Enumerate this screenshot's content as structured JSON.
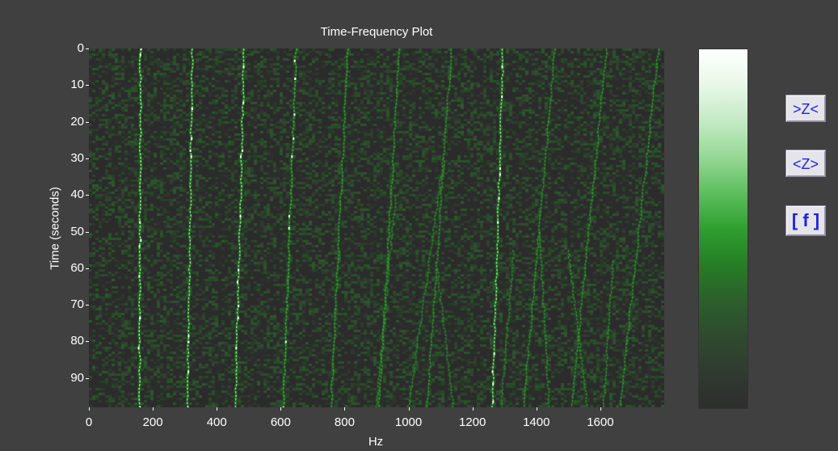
{
  "window": {
    "background": "#404040"
  },
  "toolbar": {
    "zoom_in_label": ">Z<",
    "zoom_out_label": "<Z>",
    "frequency_label": "[ f ]",
    "text_color": "#2222dd"
  },
  "chart_data": {
    "type": "heatmap",
    "title": "Time-Frequency Plot",
    "xlabel": "Hz",
    "ylabel": "Time (seconds)",
    "xlim": [
      0,
      1800
    ],
    "ylim": [
      98,
      0
    ],
    "x_ticks": [
      "0",
      "200",
      "400",
      "600",
      "800",
      "1000",
      "1200",
      "1400",
      "1600"
    ],
    "y_ticks": [
      "0",
      "10",
      "20",
      "30",
      "40",
      "50",
      "60",
      "70",
      "80",
      "90"
    ],
    "x_tick_values": [
      0,
      200,
      400,
      600,
      800,
      1000,
      1200,
      1400,
      1600
    ],
    "y_tick_values": [
      0,
      10,
      20,
      30,
      40,
      50,
      60,
      70,
      80,
      90
    ],
    "colormap": {
      "low": "#2b2b2b",
      "mid": "#2aa02a",
      "high": "#ffffff"
    },
    "series": [
      {
        "start_time": 0,
        "freq_at_start": 162,
        "freq_at_end": 158,
        "intensity": 0.95
      },
      {
        "start_time": 0,
        "freq_at_start": 324,
        "freq_at_end": 308,
        "intensity": 0.85
      },
      {
        "start_time": 0,
        "freq_at_start": 486,
        "freq_at_end": 458,
        "intensity": 0.85
      },
      {
        "start_time": 0,
        "freq_at_start": 648,
        "freq_at_end": 608,
        "intensity": 0.75
      },
      {
        "start_time": 0,
        "freq_at_start": 810,
        "freq_at_end": 758,
        "intensity": 0.65
      },
      {
        "start_time": 0,
        "freq_at_start": 972,
        "freq_at_end": 908,
        "intensity": 0.6
      },
      {
        "start_time": 0,
        "freq_at_start": 1134,
        "freq_at_end": 1058,
        "intensity": 0.55
      },
      {
        "start_time": 0,
        "freq_at_start": 1296,
        "freq_at_end": 1262,
        "intensity": 0.85
      },
      {
        "start_time": 0,
        "freq_at_start": 1458,
        "freq_at_end": 1360,
        "intensity": 0.55
      },
      {
        "start_time": 0,
        "freq_at_start": 1620,
        "freq_at_end": 1510,
        "intensity": 0.55
      },
      {
        "start_time": 0,
        "freq_at_start": 1782,
        "freq_at_end": 1662,
        "intensity": 0.55
      },
      {
        "start_time": 30,
        "freq_at_start": 1110,
        "freq_at_end": 1000,
        "intensity": 0.45
      },
      {
        "start_time": 40,
        "freq_at_start": 960,
        "freq_at_end": 900,
        "intensity": 0.45
      },
      {
        "start_time": 50,
        "freq_at_start": 1410,
        "freq_at_end": 1440,
        "intensity": 0.5
      },
      {
        "start_time": 55,
        "freq_at_start": 1330,
        "freq_at_end": 1290,
        "intensity": 0.45
      },
      {
        "start_time": 55,
        "freq_at_start": 1500,
        "freq_at_end": 1560,
        "intensity": 0.5
      },
      {
        "start_time": 58,
        "freq_at_start": 1640,
        "freq_at_end": 1610,
        "intensity": 0.5
      },
      {
        "start_time": 60,
        "freq_at_start": 1090,
        "freq_at_end": 1140,
        "intensity": 0.45
      }
    ]
  }
}
